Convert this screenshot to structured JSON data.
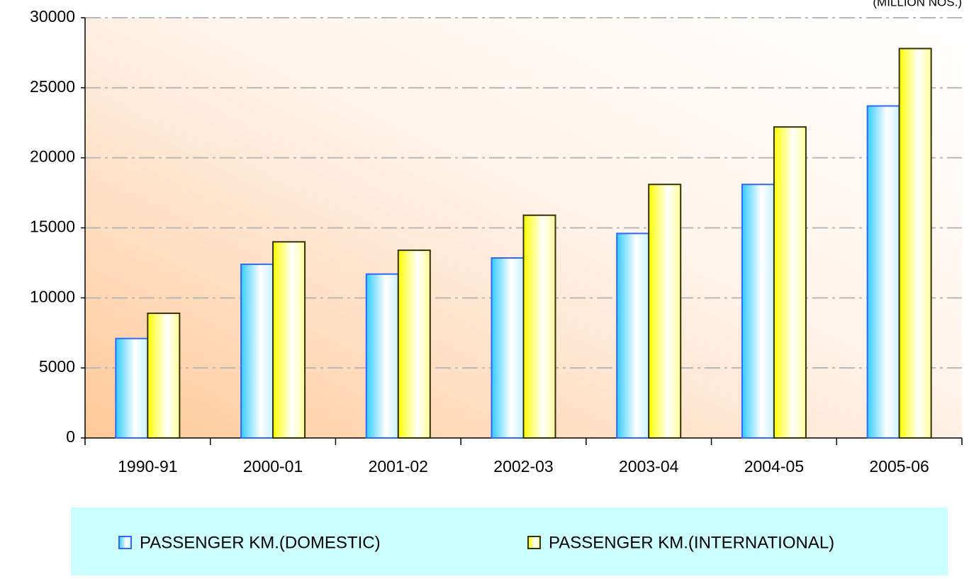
{
  "chart_data": {
    "type": "bar",
    "subtitle": "(MILLION NOS.)",
    "categories": [
      "1990-91",
      "2000-01",
      "2001-02",
      "2002-03",
      "2003-04",
      "2004-05",
      "2005-06"
    ],
    "series": [
      {
        "name": "PASSENGER KM.(DOMESTIC)",
        "color": "#33ccff",
        "values": [
          7100,
          12400,
          11700,
          12850,
          14600,
          18100,
          23700
        ]
      },
      {
        "name": "PASSENGER KM.(INTERNATIONAL)",
        "color": "#ffff00",
        "values": [
          8900,
          14000,
          13400,
          15900,
          18100,
          22200,
          27800
        ]
      }
    ],
    "ylim": [
      0,
      30000
    ],
    "yticks": [
      0,
      5000,
      10000,
      15000,
      20000,
      25000,
      30000
    ],
    "grid": true,
    "legend": "bottom"
  }
}
